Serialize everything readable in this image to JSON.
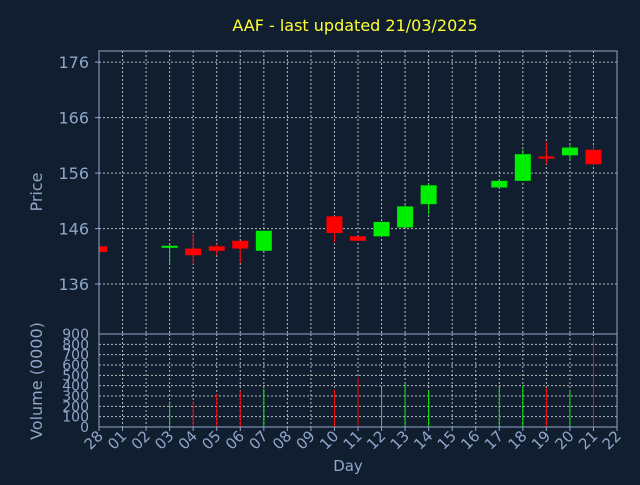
{
  "chart_data": {
    "type": "candlestick",
    "title": "AAF - last updated 21/03/2025",
    "xlabel": "Day",
    "price_panel": {
      "ylabel": "Price",
      "ylim": [
        127,
        178
      ],
      "yticks": [
        136,
        146,
        156,
        166,
        176
      ],
      "grid": true
    },
    "volume_panel": {
      "ylabel": "Volume (0000)",
      "ylim": [
        0,
        900
      ],
      "yticks": [
        0,
        100,
        200,
        300,
        400,
        500,
        600,
        700,
        800,
        900
      ],
      "grid": true
    },
    "x_ticks": [
      "28",
      "01",
      "02",
      "03",
      "04",
      "05",
      "06",
      "07",
      "08",
      "09",
      "10",
      "11",
      "12",
      "13",
      "14",
      "15",
      "16",
      "17",
      "18",
      "19",
      "20",
      "21",
      "22"
    ],
    "candles": [
      {
        "day": "28",
        "open": 142.8,
        "high": 142.8,
        "low": 141.8,
        "close": 141.8,
        "volume": 0
      },
      {
        "day": "03",
        "open": 142.6,
        "high": 143.2,
        "low": 139.6,
        "close": 142.9,
        "volume": 250
      },
      {
        "day": "04",
        "open": 142.4,
        "high": 145.0,
        "low": 139.6,
        "close": 141.2,
        "volume": 250
      },
      {
        "day": "05",
        "open": 142.8,
        "high": 143.2,
        "low": 141.2,
        "close": 142.0,
        "volume": 320
      },
      {
        "day": "06",
        "open": 143.8,
        "high": 143.8,
        "low": 139.8,
        "close": 142.4,
        "volume": 350
      },
      {
        "day": "07",
        "open": 142.0,
        "high": 145.6,
        "low": 142.0,
        "close": 145.6,
        "volume": 370
      },
      {
        "day": "10",
        "open": 148.2,
        "high": 148.2,
        "low": 143.6,
        "close": 145.2,
        "volume": 360
      },
      {
        "day": "11",
        "open": 144.6,
        "high": 144.6,
        "low": 143.8,
        "close": 143.8,
        "volume": 480
      },
      {
        "day": "12",
        "open": 144.6,
        "high": 147.2,
        "low": 144.6,
        "close": 147.2,
        "volume": 380
      },
      {
        "day": "13",
        "open": 146.2,
        "high": 150.2,
        "low": 146.2,
        "close": 150.0,
        "volume": 420
      },
      {
        "day": "14",
        "open": 150.4,
        "high": 154.0,
        "low": 148.6,
        "close": 153.8,
        "volume": 350
      },
      {
        "day": "17",
        "open": 153.4,
        "high": 154.8,
        "low": 153.4,
        "close": 154.6,
        "volume": 380
      },
      {
        "day": "18",
        "open": 154.6,
        "high": 160.2,
        "low": 154.6,
        "close": 159.4,
        "volume": 400
      },
      {
        "day": "19",
        "open": 159.0,
        "high": 161.6,
        "low": 157.6,
        "close": 158.6,
        "volume": 380
      },
      {
        "day": "20",
        "open": 159.2,
        "high": 161.0,
        "low": 158.2,
        "close": 160.6,
        "volume": 360
      },
      {
        "day": "21",
        "open": 160.2,
        "high": 161.0,
        "low": 157.4,
        "close": 157.6,
        "volume": 860
      }
    ],
    "colors": {
      "background": "#111e2f",
      "axis_text": "#8fa6c9",
      "title": "#ffff33",
      "grid": "#cccccc",
      "up": "#00ee00",
      "down": "#ff0000",
      "frame": "#8fa6c9"
    }
  }
}
